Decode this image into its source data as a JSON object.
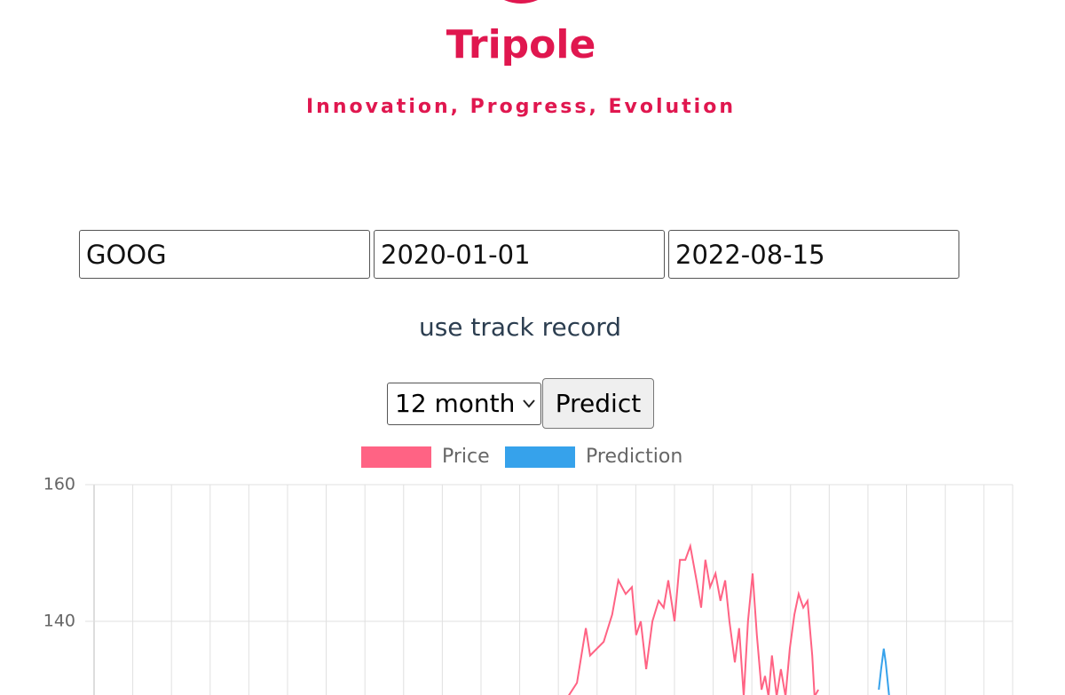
{
  "header": {
    "title": "Tripole",
    "tagline": "Innovation, Progress, Evolution"
  },
  "form": {
    "ticker": "GOOG",
    "start_date": "2020-01-01",
    "end_date": "2022-08-15",
    "link": "use track record",
    "period": "12 month",
    "button": "Predict"
  },
  "chart_data": {
    "type": "line",
    "xlim": [
      0,
      23.74
    ],
    "xticks": [
      0,
      1,
      2,
      3,
      4,
      5,
      6,
      7,
      8,
      9,
      10,
      11,
      12,
      13,
      14,
      15,
      16,
      17,
      18,
      19,
      20,
      21,
      22,
      23,
      23.74
    ],
    "ylim": [
      129.2,
      160
    ],
    "yticks": [
      140,
      160
    ],
    "grid": true,
    "series": [
      {
        "name": "Price",
        "color": "#ff6384",
        "x": [
          12.25,
          12.48,
          12.71,
          12.82,
          13.17,
          13.39,
          13.55,
          13.74,
          13.9,
          14.01,
          14.13,
          14.27,
          14.43,
          14.59,
          14.72,
          14.84,
          15.0,
          15.14,
          15.28,
          15.41,
          15.57,
          15.69,
          15.8,
          15.92,
          16.06,
          16.19,
          16.31,
          16.42,
          16.56,
          16.67,
          16.79,
          16.9,
          17.02,
          17.13,
          17.25,
          17.34,
          17.43,
          17.52,
          17.64,
          17.75,
          17.87,
          17.98,
          18.1,
          18.21,
          18.33,
          18.44,
          18.56,
          18.62,
          18.72
        ],
        "values": [
          129,
          131,
          139,
          135,
          137,
          141,
          146,
          144,
          145,
          138,
          140,
          133,
          140,
          143,
          142,
          146,
          140,
          149,
          149,
          151,
          146,
          142,
          149,
          145,
          147,
          143,
          146,
          140,
          134,
          139,
          129,
          140,
          147,
          138,
          130,
          132,
          129,
          135,
          129,
          133,
          129,
          136,
          141,
          144,
          142,
          143,
          135,
          129,
          130
        ]
      },
      {
        "name": "Prediction",
        "color": "#36a2eb",
        "x": [
          20.28,
          20.34,
          20.41,
          20.46,
          20.55
        ],
        "values": [
          130,
          133,
          136,
          134,
          129
        ]
      }
    ]
  }
}
